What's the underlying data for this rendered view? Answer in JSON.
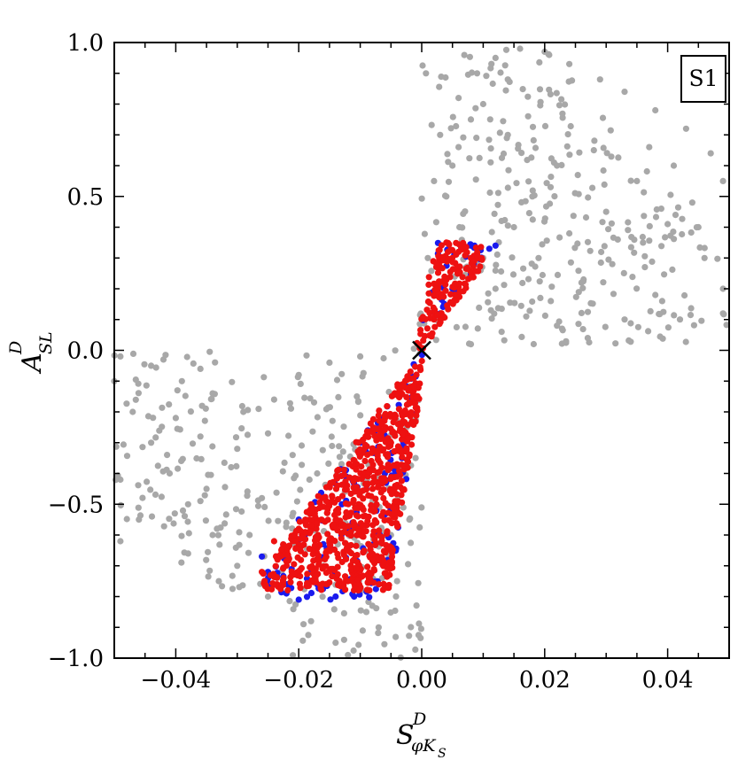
{
  "chart_data": {
    "type": "scatter",
    "title": "",
    "panel_label": "S1",
    "xlabel": {
      "main": "S",
      "sup": "D",
      "sub": "φK",
      "subsub": "S"
    },
    "ylabel": {
      "main": "A",
      "sup": "D",
      "sub": "SL"
    },
    "xlim": [
      -0.05,
      0.05
    ],
    "ylim": [
      -1.0,
      1.0
    ],
    "xticks": [
      -0.04,
      -0.02,
      0.0,
      0.02,
      0.04
    ],
    "xtick_labels": [
      "−0.04",
      "−0.02",
      "0.00",
      "0.02",
      "0.04"
    ],
    "yticks": [
      -1.0,
      -0.5,
      0.0,
      0.5,
      1.0
    ],
    "ytick_labels": [
      "−1.0",
      "−0.5",
      "0.0",
      "0.5",
      "1.0"
    ],
    "grid": false,
    "marker": {
      "x": 0.0,
      "y": 0.0,
      "symbol": "×"
    },
    "colors": {
      "gray": "#a8a8a8",
      "blue": "#1a1aee",
      "red": "#ee1111"
    },
    "series": [
      {
        "color": "#a8a8a8",
        "points": [
          [
            0.016,
            0.98
          ],
          [
            0.02,
            0.97
          ],
          [
            0.024,
            0.93
          ],
          [
            0.029,
            0.88
          ],
          [
            0.033,
            0.84
          ],
          [
            0.038,
            0.78
          ],
          [
            0.043,
            0.72
          ],
          [
            0.047,
            0.64
          ],
          [
            0.049,
            0.55
          ],
          [
            0.044,
            0.48
          ],
          [
            0.04,
            0.41
          ],
          [
            0.036,
            0.35
          ],
          [
            0.031,
            0.28
          ],
          [
            0.026,
            0.22
          ],
          [
            0.021,
            0.16
          ],
          [
            0.017,
            0.11
          ],
          [
            0.013,
            0.06
          ],
          [
            0.008,
            0.02
          ],
          [
            0.046,
            0.3
          ],
          [
            0.049,
            0.2
          ],
          [
            0.041,
            0.6
          ],
          [
            0.035,
            0.55
          ],
          [
            0.028,
            0.65
          ],
          [
            0.022,
            0.6
          ],
          [
            0.03,
            0.45
          ],
          [
            0.024,
            0.38
          ],
          [
            0.019,
            0.3
          ],
          [
            0.012,
            0.2
          ],
          [
            0.038,
            0.18
          ],
          [
            0.033,
            0.1
          ],
          [
            0.027,
            0.04
          ],
          [
            0.042,
            0.1
          ],
          [
            0.045,
            0.4
          ],
          [
            0.037,
            0.66
          ],
          [
            0.018,
            0.5
          ],
          [
            0.015,
            0.4
          ],
          [
            0.01,
            0.3
          ],
          [
            0.049,
            0.12
          ],
          [
            0.022,
            0.08
          ],
          [
            0.014,
            0.88
          ],
          [
            0.01,
            0.8
          ],
          [
            0.006,
            0.66
          ],
          [
            0.004,
            0.5
          ],
          [
            -0.049,
            -0.02
          ],
          [
            -0.044,
            -0.05
          ],
          [
            -0.039,
            -0.1
          ],
          [
            -0.034,
            -0.14
          ],
          [
            -0.029,
            -0.2
          ],
          [
            -0.025,
            -0.27
          ],
          [
            -0.021,
            -0.34
          ],
          [
            -0.017,
            -0.4
          ],
          [
            -0.047,
            -0.2
          ],
          [
            -0.044,
            -0.3
          ],
          [
            -0.041,
            -0.4
          ],
          [
            -0.038,
            -0.5
          ],
          [
            -0.034,
            -0.6
          ],
          [
            -0.03,
            -0.7
          ],
          [
            -0.025,
            -0.8
          ],
          [
            -0.018,
            -0.88
          ],
          [
            -0.014,
            -0.95
          ],
          [
            -0.012,
            -0.99
          ],
          [
            -0.049,
            -0.42
          ],
          [
            -0.046,
            -0.55
          ],
          [
            -0.049,
            -0.62
          ],
          [
            -0.036,
            -0.28
          ],
          [
            -0.031,
            -0.38
          ],
          [
            -0.026,
            -0.48
          ],
          [
            -0.022,
            -0.56
          ],
          [
            -0.04,
            -0.22
          ],
          [
            -0.035,
            -0.45
          ],
          [
            -0.028,
            -0.6
          ],
          [
            -0.03,
            -0.32
          ],
          [
            -0.024,
            -0.16
          ],
          [
            -0.02,
            -0.08
          ],
          [
            -0.015,
            -0.04
          ],
          [
            -0.01,
            -0.02
          ],
          [
            -0.042,
            -0.03
          ],
          [
            -0.036,
            -0.06
          ],
          [
            -0.05,
            -0.1
          ],
          [
            -0.033,
            -0.75
          ],
          [
            -0.038,
            -0.66
          ],
          [
            -0.019,
            -0.6
          ],
          [
            -0.016,
            -0.7
          ],
          [
            -0.007,
            -0.9
          ],
          [
            -0.004,
            -0.75
          ],
          [
            -0.002,
            -0.55
          ],
          [
            -0.001,
            -0.35
          ],
          [
            -0.005,
            -0.6
          ],
          [
            -0.009,
            -0.85
          ],
          [
            0.001,
            0.3
          ],
          [
            0.002,
            0.55
          ],
          [
            0.003,
            0.7
          ],
          [
            0.006,
            0.82
          ],
          [
            0.009,
            0.9
          ],
          [
            0.012,
            0.95
          ],
          [
            0.008,
            0.75
          ],
          [
            0.005,
            0.6
          ],
          [
            0.014,
            0.7
          ]
        ],
        "spread": [
          {
            "n": 560,
            "x": [
              -0.05,
              0.05
            ],
            "y": [
              -1.0,
              1.0
            ],
            "region": "envelope"
          }
        ]
      },
      {
        "color": "#1a1aee",
        "points": [
          [
            -0.026,
            -0.67
          ],
          [
            -0.025,
            -0.72
          ],
          [
            -0.022,
            -0.79
          ],
          [
            -0.02,
            -0.81
          ],
          [
            -0.017,
            -0.76
          ],
          [
            -0.014,
            -0.8
          ],
          [
            -0.011,
            -0.8
          ],
          [
            -0.019,
            -0.6
          ],
          [
            -0.016,
            -0.63
          ],
          [
            -0.02,
            -0.55
          ],
          [
            -0.013,
            -0.5
          ],
          [
            -0.009,
            -0.45
          ],
          [
            -0.006,
            -0.4
          ],
          [
            -0.003,
            -0.3
          ],
          [
            0.008,
            0.34
          ],
          [
            0.012,
            0.34
          ],
          [
            0.009,
            0.3
          ],
          [
            0.011,
            0.33
          ],
          [
            0.005,
            0.2
          ],
          [
            0.003,
            0.12
          ]
        ],
        "spread": [
          {
            "n": 140,
            "x": [
              -0.026,
              0.012
            ],
            "y": [
              -0.81,
              0.35
            ],
            "region": "wedge"
          }
        ]
      },
      {
        "color": "#ee1111",
        "points": [
          [
            -0.026,
            -0.72
          ],
          [
            -0.024,
            -0.62
          ],
          [
            -0.022,
            -0.66
          ],
          [
            -0.02,
            -0.58
          ],
          [
            -0.018,
            -0.5
          ],
          [
            -0.015,
            -0.44
          ],
          [
            -0.012,
            -0.75
          ],
          [
            -0.01,
            -0.6
          ],
          [
            -0.008,
            -0.45
          ],
          [
            -0.005,
            -0.3
          ],
          [
            -0.002,
            -0.12
          ],
          [
            0.002,
            0.1
          ],
          [
            0.004,
            0.35
          ],
          [
            0.006,
            0.32
          ],
          [
            0.008,
            0.3
          ]
        ],
        "spread": [
          {
            "n": 900,
            "x": [
              -0.026,
              0.01
            ],
            "y": [
              -0.78,
              0.35
            ],
            "region": "wedge"
          }
        ]
      }
    ]
  }
}
